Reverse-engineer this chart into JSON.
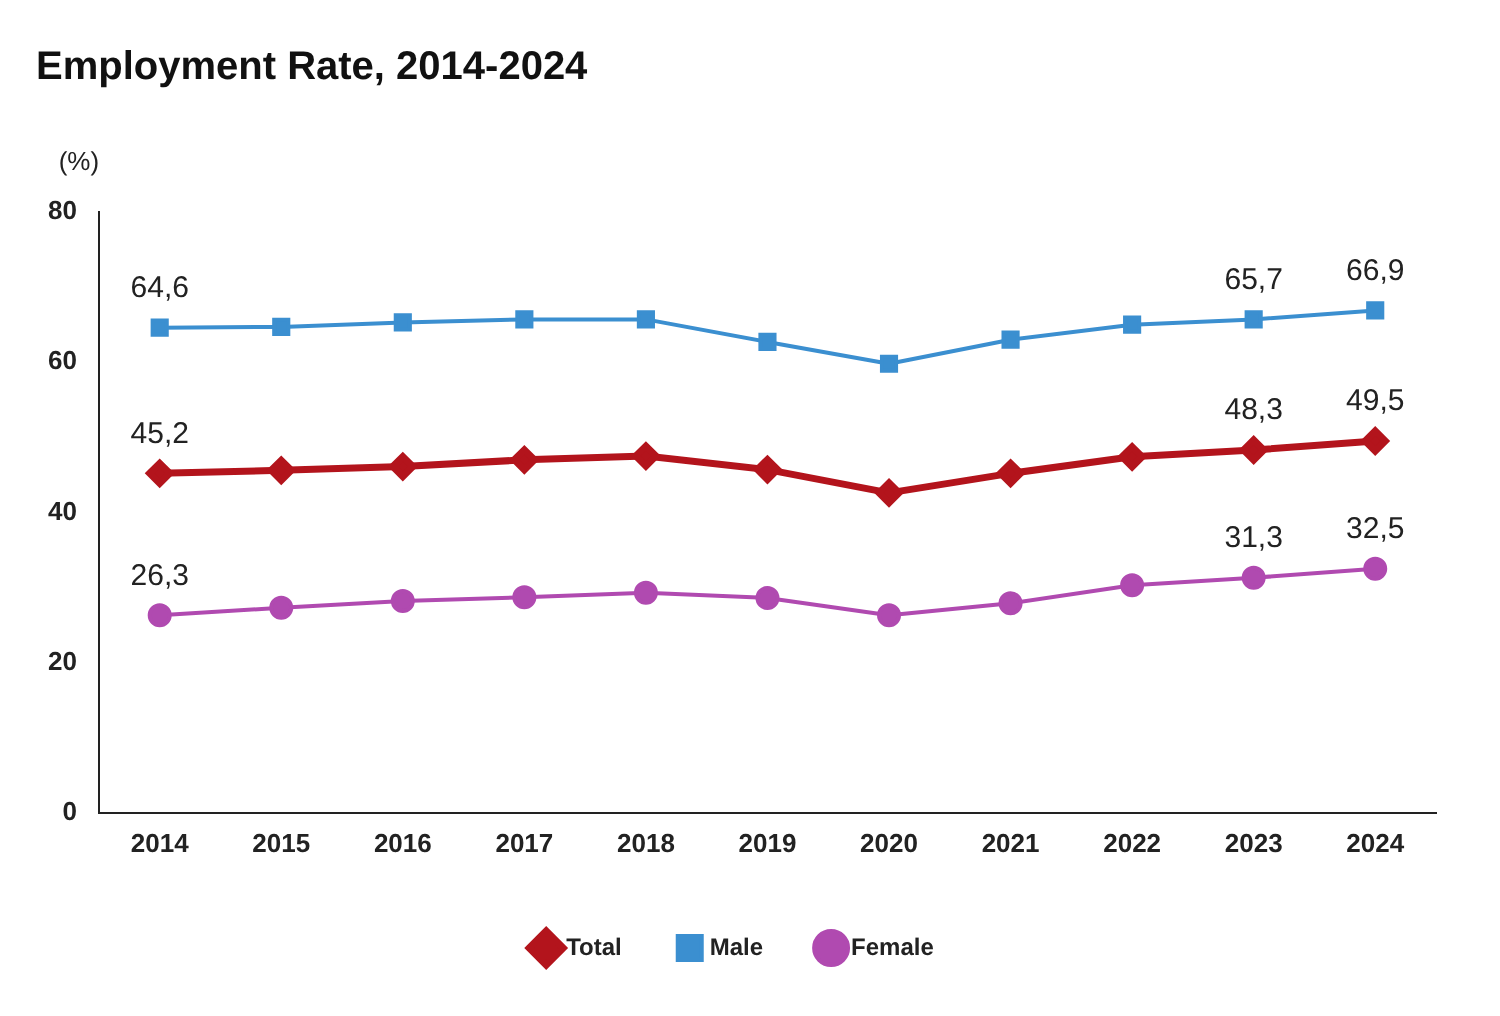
{
  "chart_data": {
    "type": "line",
    "title": "Employment Rate, 2014-2024",
    "ylabel": "(%)",
    "categories": [
      "2014",
      "2015",
      "2016",
      "2017",
      "2018",
      "2019",
      "2020",
      "2021",
      "2022",
      "2023",
      "2024"
    ],
    "series": [
      {
        "name": "Total",
        "color": "#b3141c",
        "marker": "diamond",
        "values": [
          45.2,
          45.6,
          46.1,
          47.0,
          47.5,
          45.7,
          42.6,
          45.2,
          47.4,
          48.3,
          49.5
        ],
        "value_labels": [
          "45,2",
          null,
          null,
          null,
          null,
          null,
          null,
          null,
          null,
          "48,3",
          "49,5"
        ]
      },
      {
        "name": "Male",
        "color": "#3b8fd0",
        "marker": "square",
        "values": [
          64.6,
          64.7,
          65.3,
          65.7,
          65.7,
          62.7,
          59.8,
          63.0,
          65.0,
          65.7,
          66.9
        ],
        "value_labels": [
          "64,6",
          null,
          null,
          null,
          null,
          null,
          null,
          null,
          null,
          "65,7",
          "66,9"
        ]
      },
      {
        "name": "Female",
        "color": "#b04ab0",
        "marker": "circle",
        "values": [
          26.3,
          27.3,
          28.2,
          28.7,
          29.3,
          28.6,
          26.3,
          27.9,
          30.3,
          31.3,
          32.5
        ],
        "value_labels": [
          "26,3",
          null,
          null,
          null,
          null,
          null,
          null,
          null,
          null,
          "31,3",
          "32,5"
        ]
      }
    ],
    "ylim": [
      0,
      80
    ],
    "yticks": [
      0,
      20,
      40,
      60,
      80
    ],
    "grid": false,
    "legend": "bottom"
  }
}
